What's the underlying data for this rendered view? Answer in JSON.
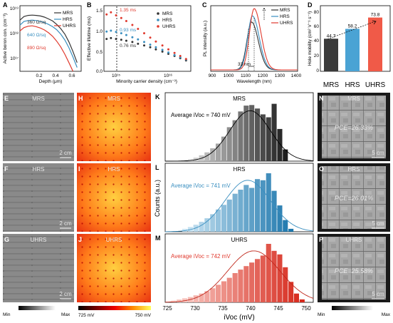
{
  "panels": {
    "A": {
      "letter": "A",
      "ylabel": "Active boron con. (cm⁻³)",
      "xlabel": "Depth (μm)",
      "yticks": [
        "10¹⁹",
        "10¹⁸",
        "10¹⁷"
      ],
      "xticks": [
        "0.2",
        "0.4",
        "0.6"
      ],
      "legend": [
        "MRS",
        "HRS",
        "UHRS"
      ],
      "annotations": [
        "360 Ω/sq",
        "640 Ω/sq",
        "890 Ω/sq"
      ]
    },
    "B": {
      "letter": "B",
      "ylabel": "Effective lifetime (ms)",
      "xlabel": "Minority carrier density (cm⁻³)",
      "yticks": [
        "1.5",
        "1.0",
        "0.5",
        "0.0"
      ],
      "xticks": [
        "10¹⁵",
        "10¹⁶"
      ],
      "legend": [
        "MRS",
        "HRS",
        "UHRS"
      ],
      "annotations": [
        "1.35 ms",
        "0.93 ms",
        "0.76 ms"
      ]
    },
    "C": {
      "letter": "C",
      "ylabel": "PL intensity (a.u.)",
      "xlabel": "Wavelength (nm)",
      "xticks": [
        "900",
        "1000",
        "1100",
        "1200",
        "1300",
        "1400"
      ],
      "legend": [
        "MRS",
        "HRS",
        "UHRS"
      ],
      "annotation": "33 nm"
    },
    "D": {
      "letter": "D",
      "ylabel": "Hole mobility (cm² V⁻¹ s⁻¹)",
      "yticks": [
        "80",
        "60",
        "40",
        "20",
        "0"
      ],
      "categories": [
        "MRS",
        "HRS",
        "UHRS"
      ]
    },
    "images": {
      "E": {
        "letter": "E",
        "label": "MRS",
        "scale": "2 cm"
      },
      "F": {
        "letter": "F",
        "label": "HRS",
        "scale": "2 cm"
      },
      "G": {
        "letter": "G",
        "label": "UHRS",
        "scale": "2 cm"
      },
      "H": {
        "letter": "H",
        "label": "MRS"
      },
      "I": {
        "letter": "I",
        "label": "HRS"
      },
      "J": {
        "letter": "J",
        "label": "UHRS"
      },
      "N": {
        "letter": "N",
        "label": "MRS",
        "pce": "PCE=26.33%",
        "scale": "5 cm"
      },
      "O": {
        "letter": "O",
        "label": "HRS",
        "pce": "PCE=26.01%",
        "scale": "5 cm"
      },
      "P": {
        "letter": "P",
        "label": "UHRS",
        "pce": "PCE=25.58%",
        "scale": "5 cm"
      }
    },
    "colorbars": {
      "gray_left": {
        "min": "Min",
        "max": "Max"
      },
      "heat": {
        "min": "725 mV",
        "max": "750 mV"
      },
      "gray_right": {
        "min": "Min",
        "max": "Max"
      }
    },
    "hist": {
      "K": {
        "letter": "K",
        "title": "MRS",
        "avg": "Average iVoc = 740 mV"
      },
      "L": {
        "letter": "L",
        "title": "HRS",
        "avg": "Average iVoc = 741 mV"
      },
      "M": {
        "letter": "M",
        "title": "UHRS",
        "avg": "Average iVoc = 742 mV"
      },
      "ylabel": "Counts (a.u.)",
      "xlabel": "iVoc (mV)",
      "xticks": [
        "725",
        "730",
        "735",
        "740",
        "745",
        "750"
      ]
    }
  },
  "colors": {
    "MRS": "#333333",
    "HRS": "#3a8fc0",
    "UHRS": "#e03a2e"
  },
  "chart_data": [
    {
      "type": "line",
      "panel": "A",
      "ylabel": "Active boron con. (cm⁻³)",
      "xlabel": "Depth (μm)",
      "xlim": [
        0,
        0.75
      ],
      "ylim": [
        1e+16,
        1e+19
      ],
      "yscale": "log",
      "series": [
        {
          "name": "MRS",
          "x": [
            0.0,
            0.05,
            0.1,
            0.15,
            0.2,
            0.25,
            0.3,
            0.35,
            0.4,
            0.45,
            0.5,
            0.55,
            0.6,
            0.65,
            0.7
          ],
          "y": [
            2.2e+18,
            3.2e+18,
            3.6e+18,
            3.7e+18,
            3.6e+18,
            3.4e+18,
            3e+18,
            2.5e+18,
            2e+18,
            1.4e+18,
            9e+17,
            5e+17,
            2.2e+17,
            8e+16,
            2.5e+16
          ]
        },
        {
          "name": "HRS",
          "x": [
            0.0,
            0.05,
            0.1,
            0.15,
            0.2,
            0.25,
            0.3,
            0.35,
            0.4,
            0.45,
            0.5,
            0.55,
            0.6,
            0.65,
            0.7
          ],
          "y": [
            1.3e+18,
            1.9e+18,
            2.1e+18,
            2.2e+18,
            2.1e+18,
            1.9e+18,
            1.7e+18,
            1.4e+18,
            1.1e+18,
            8e+17,
            5e+17,
            2.7e+17,
            1.2e+17,
            4.5e+16,
            1.5e+16
          ]
        },
        {
          "name": "UHRS",
          "x": [
            0.0,
            0.05,
            0.1,
            0.15,
            0.2,
            0.25,
            0.3,
            0.35,
            0.4,
            0.45,
            0.5,
            0.55,
            0.6,
            0.65
          ],
          "y": [
            7e+17,
            1e+18,
            1.15e+18,
            1.2e+18,
            1.1e+18,
            9.5e+17,
            7.8e+17,
            5.8e+17,
            4e+17,
            2.4e+17,
            1.3e+17,
            6e+16,
            2.5e+16,
            1e+16
          ]
        }
      ]
    },
    {
      "type": "scatter",
      "panel": "B",
      "ylabel": "Effective lifetime (ms)",
      "xlabel": "Minority carrier density (cm⁻³)",
      "xscale": "log",
      "xlim": [
        700000000000000.0,
        6e+16
      ],
      "ylim": [
        0,
        1.5
      ],
      "series": [
        {
          "name": "MRS",
          "x": [
            800000000000000.0,
            1000000000000000.0,
            1300000000000000.0,
            1700000000000000.0,
            2200000000000000.0,
            3000000000000000.0,
            4000000000000000.0,
            5500000000000000.0,
            7500000000000000.0,
            1e+16,
            1.4e+16,
            1.9e+16,
            2.6e+16,
            3.5e+16,
            4.7e+16
          ],
          "y": [
            0.74,
            0.76,
            0.74,
            0.72,
            0.7,
            0.67,
            0.63,
            0.59,
            0.55,
            0.5,
            0.45,
            0.4,
            0.35,
            0.3,
            0.25
          ]
        },
        {
          "name": "HRS",
          "x": [
            800000000000000.0,
            1000000000000000.0,
            1300000000000000.0,
            1700000000000000.0,
            2200000000000000.0,
            3000000000000000.0,
            4000000000000000.0,
            5500000000000000.0,
            7500000000000000.0,
            1e+16,
            1.4e+16,
            1.9e+16,
            2.6e+16,
            3.5e+16,
            4.7e+16
          ],
          "y": [
            0.91,
            0.93,
            0.9,
            0.87,
            0.83,
            0.78,
            0.73,
            0.67,
            0.61,
            0.55,
            0.49,
            0.43,
            0.37,
            0.32,
            0.27
          ]
        },
        {
          "name": "UHRS",
          "x": [
            800000000000000.0,
            1000000000000000.0,
            1300000000000000.0,
            1700000000000000.0,
            2200000000000000.0,
            3000000000000000.0,
            4000000000000000.0,
            5500000000000000.0,
            7500000000000000.0,
            1e+16,
            1.4e+16,
            1.9e+16,
            2.6e+16,
            3.5e+16,
            4.7e+16
          ],
          "y": [
            1.3,
            1.35,
            1.28,
            1.22,
            1.15,
            1.06,
            0.97,
            0.87,
            0.77,
            0.68,
            0.59,
            0.5,
            0.42,
            0.35,
            0.28
          ]
        }
      ]
    },
    {
      "type": "line",
      "panel": "C",
      "ylabel": "PL intensity (a.u.)",
      "xlabel": "Wavelength (nm)",
      "xlim": [
        900,
        1400
      ],
      "series": [
        {
          "name": "MRS",
          "peak_nm": 1135,
          "peak_rel": 0.78
        },
        {
          "name": "HRS",
          "peak_nm": 1140,
          "peak_rel": 0.88
        },
        {
          "name": "UHRS",
          "peak_nm": 1150,
          "peak_rel": 1.0
        }
      ]
    },
    {
      "type": "bar",
      "panel": "D",
      "ylabel": "Hole mobility (cm² V⁻¹ s⁻¹)",
      "categories": [
        "MRS",
        "HRS",
        "UHRS"
      ],
      "values": [
        44.7,
        58.2,
        73.8
      ],
      "ylim": [
        0,
        90
      ]
    },
    {
      "type": "bar",
      "panel": "K",
      "title": "MRS",
      "xlabel": "iVoc (mV)",
      "ylabel": "Counts (a.u.)",
      "x": [
        729,
        730,
        731,
        732,
        733,
        734,
        735,
        736,
        737,
        738,
        739,
        740,
        741,
        742,
        743,
        744,
        745,
        746
      ],
      "values": [
        0.03,
        0.06,
        0.1,
        0.15,
        0.22,
        0.3,
        0.42,
        0.58,
        0.7,
        0.85,
        0.95,
        0.96,
        0.9,
        0.8,
        0.75,
        0.98,
        0.55,
        0.2
      ],
      "xlim": [
        724.5,
        751
      ]
    },
    {
      "type": "bar",
      "panel": "L",
      "title": "HRS",
      "xlabel": "iVoc (mV)",
      "ylabel": "Counts (a.u.)",
      "x": [
        728,
        729,
        730,
        731,
        732,
        733,
        734,
        735,
        736,
        737,
        738,
        739,
        740,
        741,
        742,
        743,
        744,
        745,
        746,
        747
      ],
      "values": [
        0.05,
        0.08,
        0.12,
        0.17,
        0.23,
        0.3,
        0.38,
        0.46,
        0.55,
        0.65,
        0.72,
        0.8,
        0.75,
        0.9,
        0.88,
        1.0,
        0.7,
        0.45,
        0.2,
        0.05
      ],
      "xlim": [
        724.5,
        751
      ]
    },
    {
      "type": "bar",
      "panel": "M",
      "title": "UHRS",
      "xlabel": "iVoc (mV)",
      "ylabel": "Counts (a.u.)",
      "x": [
        726,
        727,
        728,
        729,
        730,
        731,
        732,
        733,
        734,
        735,
        736,
        737,
        738,
        739,
        740,
        741,
        742,
        743,
        744,
        745,
        746,
        747,
        748,
        749
      ],
      "values": [
        0.03,
        0.05,
        0.07,
        0.09,
        0.12,
        0.15,
        0.19,
        0.24,
        0.3,
        0.36,
        0.42,
        0.5,
        0.56,
        0.62,
        0.68,
        0.74,
        0.8,
        1.0,
        0.88,
        0.82,
        0.6,
        0.35,
        0.15,
        0.05
      ],
      "xlim": [
        724.5,
        751
      ]
    }
  ]
}
